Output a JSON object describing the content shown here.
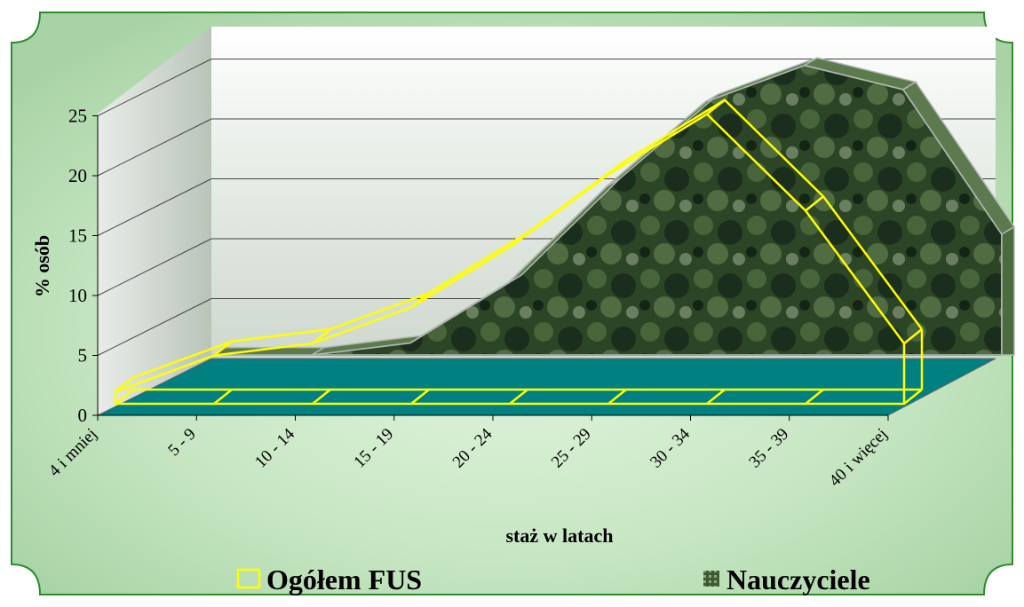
{
  "chart_data": {
    "type": "area",
    "view": "3d",
    "xlabel": "staż w latach",
    "ylabel": "% osób",
    "ylim": [
      0,
      25
    ],
    "yticks": [
      0,
      5,
      10,
      15,
      20,
      25
    ],
    "grid": true,
    "legend_position": "bottom",
    "categories": [
      "4 i mniej",
      "5 - 9",
      "10 - 14",
      "15 - 19",
      "20 - 24",
      "25 - 29",
      "30 - 34",
      "35 - 39",
      "40 i więcej"
    ],
    "series": [
      {
        "name": "Ogółem FUS",
        "values": [
          1,
          4,
          5,
          8,
          13,
          19,
          24,
          16,
          5
        ],
        "color": "#ffff00"
      },
      {
        "name": "Nauczyciele",
        "values": [
          0,
          0,
          1,
          6,
          14,
          21,
          24,
          22,
          10
        ],
        "color": "#2f4a26"
      }
    ]
  },
  "colors": {
    "frame_background": "#b8deb8",
    "frame_border": "#2e8b2e",
    "floor": "#008080",
    "wall": "#ffffff"
  }
}
